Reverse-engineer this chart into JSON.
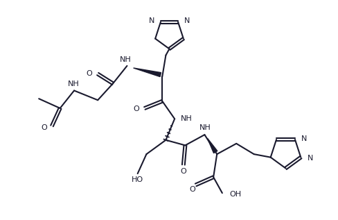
{
  "background": "#ffffff",
  "line_color": "#1a1a2e",
  "line_width": 1.5,
  "font_size": 8.0,
  "fig_w": 4.89,
  "fig_h": 3.17,
  "dpi": 100,
  "xlim": [
    0,
    9.5
  ],
  "ylim": [
    0,
    6.2
  ]
}
